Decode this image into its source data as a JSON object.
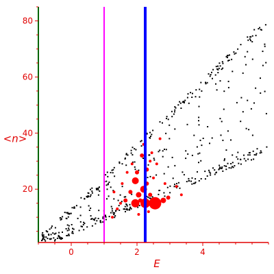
{
  "chart_data": {
    "type": "scatter",
    "xlabel": "E",
    "ylabel": "<n>",
    "xlim": [
      -1,
      6
    ],
    "ylim": [
      1,
      85
    ],
    "x_ticks": [
      0,
      2,
      4
    ],
    "y_ticks": [
      20,
      40,
      60,
      80
    ],
    "grid": false,
    "colors": {
      "axes": "#e00000",
      "points": "#000000",
      "highlight": "#ff0000",
      "line_magenta": "#ff00ff",
      "line_blue": "#0000ff",
      "y_axis_line": "#006400"
    },
    "vertical_lines": [
      {
        "x": 1.0,
        "color": "#ff00ff"
      },
      {
        "x": 2.25,
        "color": "#0000ff"
      }
    ],
    "black_points": {
      "description_count": 520,
      "points": []
    },
    "red_points": [
      {
        "x": 1.95,
        "y": 23,
        "size": 5
      },
      {
        "x": 2.3,
        "y": 22,
        "size": 3
      },
      {
        "x": 1.8,
        "y": 19,
        "size": 3
      },
      {
        "x": 2.2,
        "y": 20,
        "size": 5
      },
      {
        "x": 2.05,
        "y": 18,
        "size": 4
      },
      {
        "x": 1.65,
        "y": 16,
        "size": 3
      },
      {
        "x": 2.1,
        "y": 16,
        "size": 3
      },
      {
        "x": 2.4,
        "y": 18,
        "size": 3
      },
      {
        "x": 1.95,
        "y": 15,
        "size": 6
      },
      {
        "x": 2.25,
        "y": 15,
        "size": 7
      },
      {
        "x": 2.55,
        "y": 15,
        "size": 9
      },
      {
        "x": 2.8,
        "y": 16,
        "size": 4
      },
      {
        "x": 2.95,
        "y": 17,
        "size": 3
      },
      {
        "x": 1.5,
        "y": 15,
        "size": 2
      },
      {
        "x": 1.4,
        "y": 13,
        "size": 2
      },
      {
        "x": 2.0,
        "y": 26,
        "size": 3
      },
      {
        "x": 2.3,
        "y": 27,
        "size": 3
      },
      {
        "x": 2.4,
        "y": 30,
        "size": 2
      },
      {
        "x": 2.6,
        "y": 29,
        "size": 2
      },
      {
        "x": 2.15,
        "y": 32,
        "size": 3
      },
      {
        "x": 2.2,
        "y": 36,
        "size": 2
      },
      {
        "x": 2.7,
        "y": 38,
        "size": 2
      },
      {
        "x": 1.7,
        "y": 26,
        "size": 2
      },
      {
        "x": 1.55,
        "y": 22,
        "size": 2
      },
      {
        "x": 2.5,
        "y": 24,
        "size": 2
      },
      {
        "x": 2.85,
        "y": 22,
        "size": 2
      },
      {
        "x": 3.2,
        "y": 21,
        "size": 2
      },
      {
        "x": 1.85,
        "y": 29,
        "size": 2
      },
      {
        "x": 2.45,
        "y": 33,
        "size": 2
      },
      {
        "x": 1.3,
        "y": 19,
        "size": 2
      },
      {
        "x": 1.25,
        "y": 10,
        "size": 2
      },
      {
        "x": 2.05,
        "y": 11,
        "size": 2
      },
      {
        "x": 2.35,
        "y": 12,
        "size": 2
      },
      {
        "x": 3.35,
        "y": 18,
        "size": 2
      }
    ]
  }
}
